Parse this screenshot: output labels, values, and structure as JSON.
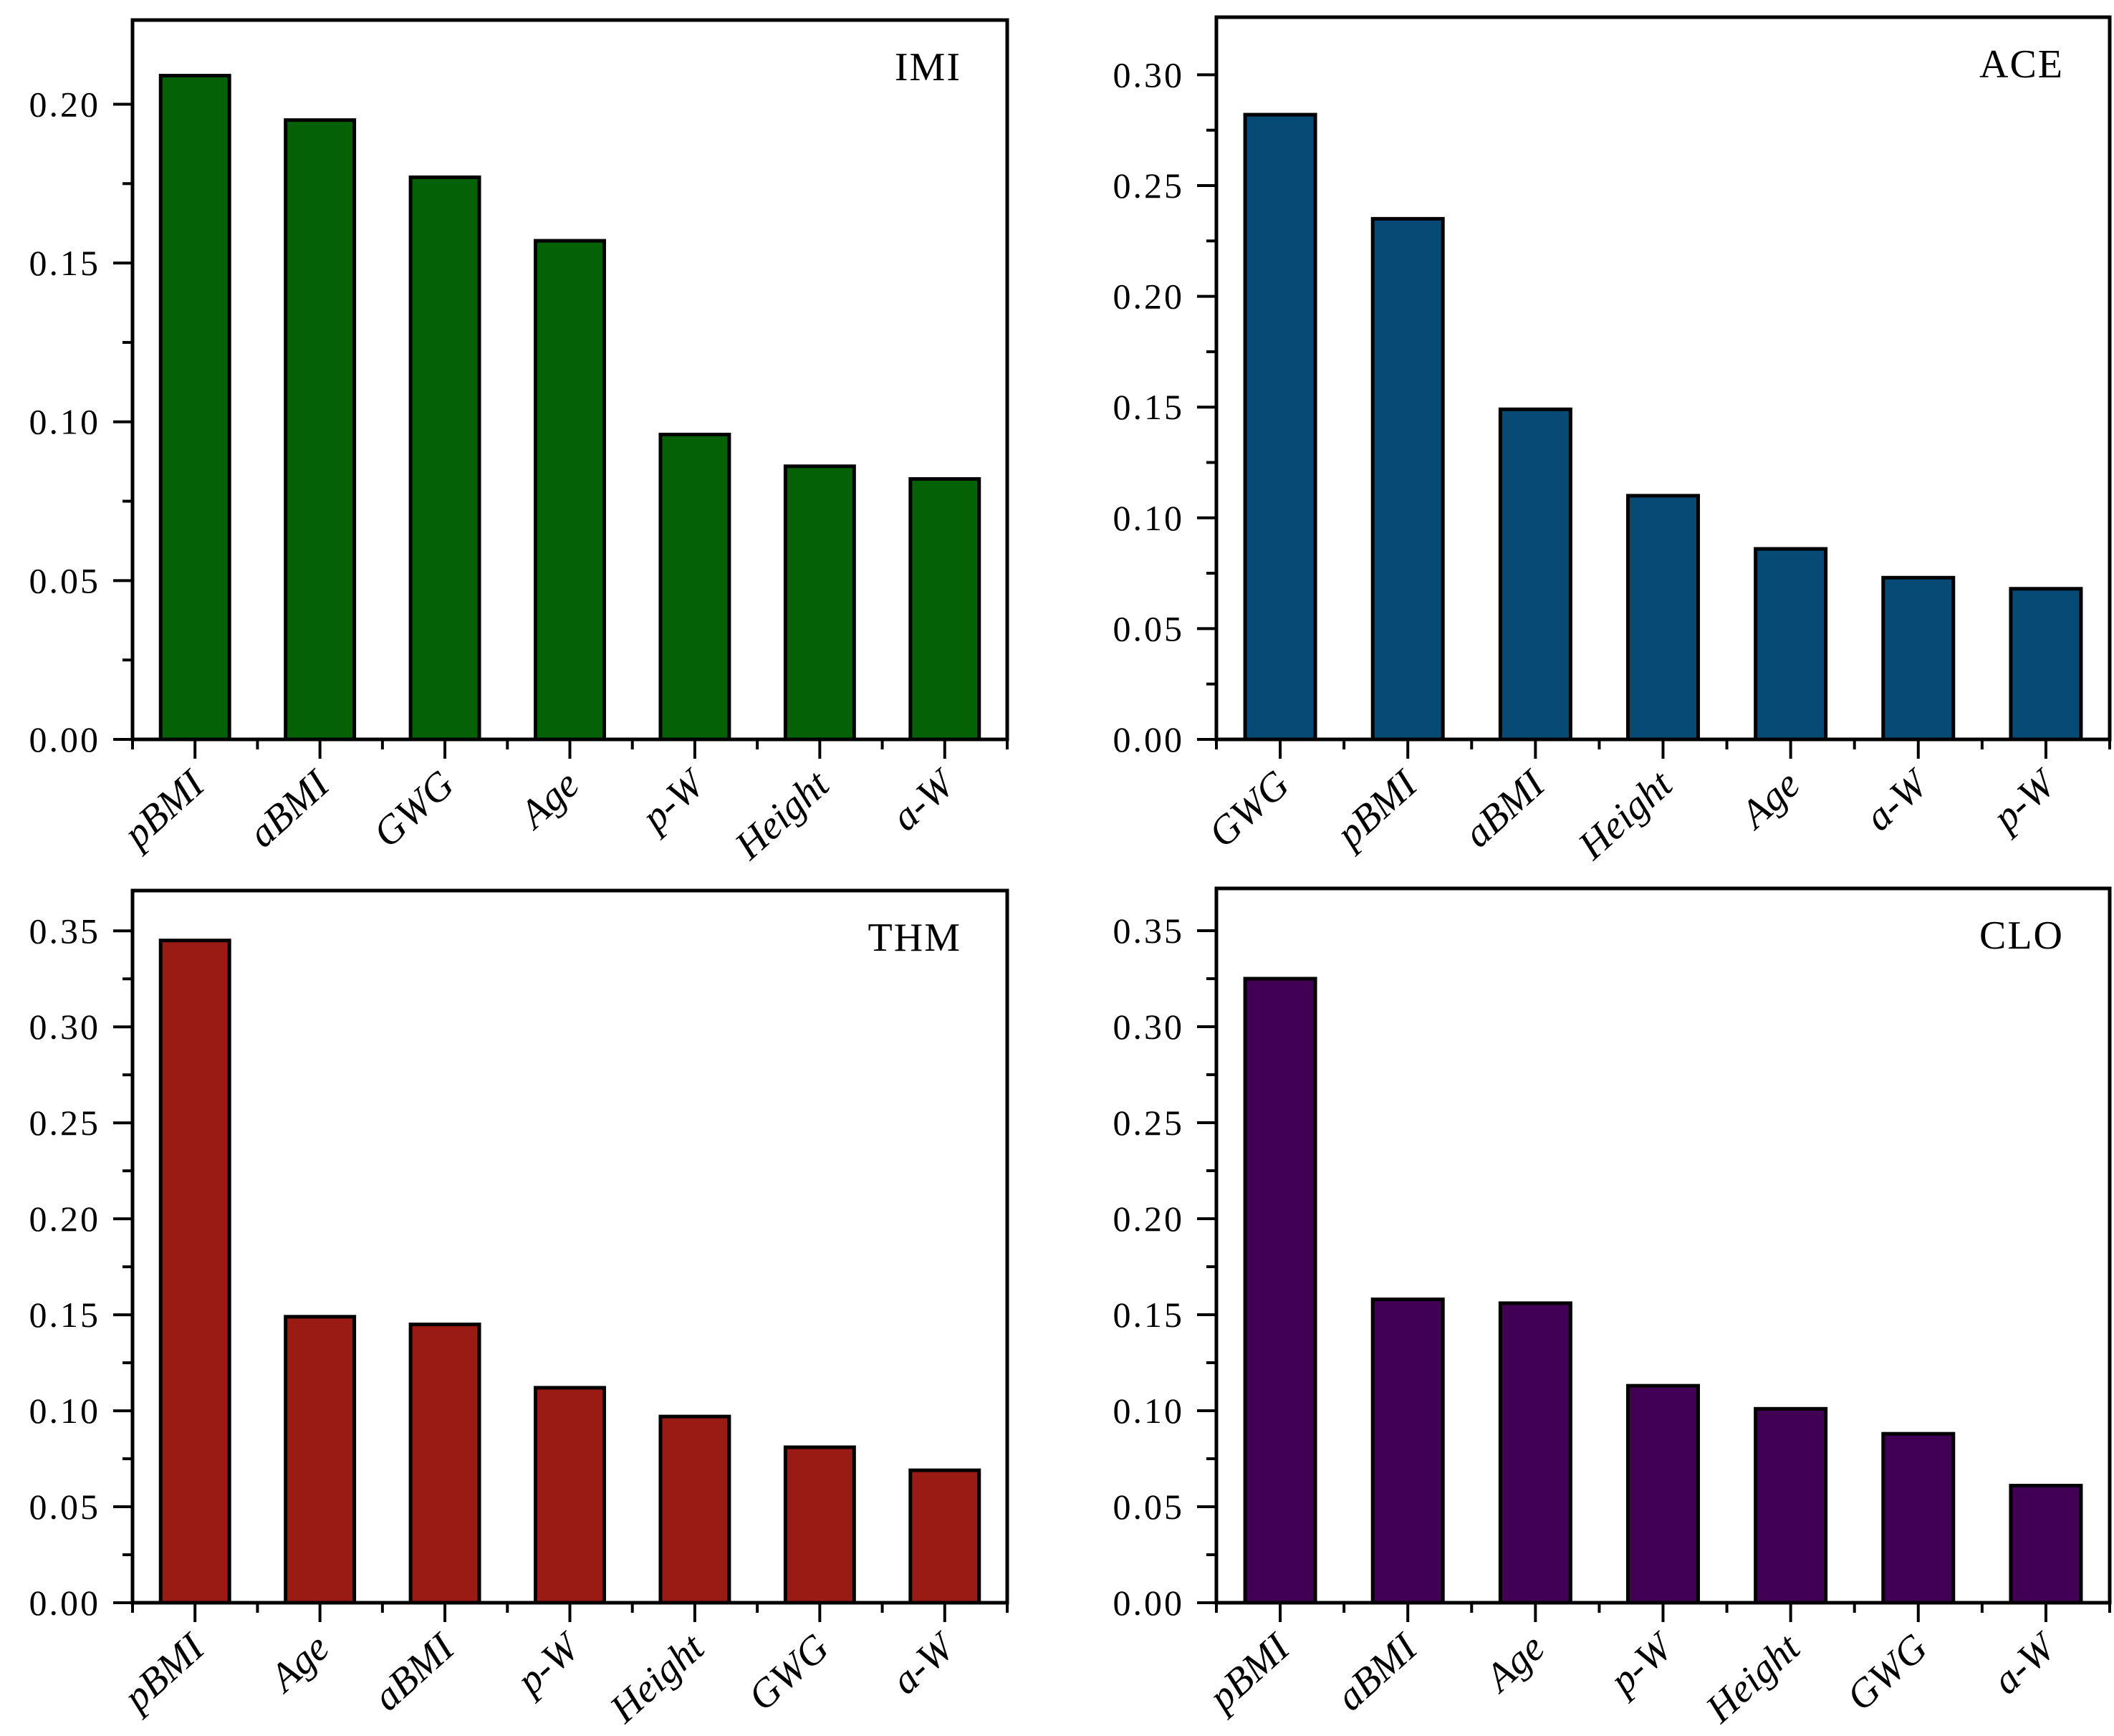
{
  "figure": {
    "background": "#ffffff",
    "axis_color": "#000000"
  },
  "chart_data": [
    {
      "type": "bar",
      "title": "IMI",
      "bar_color": "#056105",
      "categories": [
        "pBMI",
        "aBMI",
        "GWG",
        "Age",
        "p-W",
        "Height",
        "a-W"
      ],
      "values": [
        0.209,
        0.195,
        0.177,
        0.157,
        0.096,
        0.086,
        0.082
      ],
      "xlabel": "",
      "ylabel": "",
      "ylim": [
        0,
        0.2265
      ],
      "ytick_step": 0.05,
      "ytick_labels": [
        "0.00",
        "0.05",
        "0.10",
        "0.15",
        "0.20"
      ],
      "grid": "off",
      "legend": "none"
    },
    {
      "type": "bar",
      "title": "ACE",
      "bar_color": "#084a76",
      "categories": [
        "GWG",
        "pBMI",
        "aBMI",
        "Height",
        "Age",
        "a-W",
        "p-W"
      ],
      "values": [
        0.282,
        0.235,
        0.149,
        0.11,
        0.086,
        0.073,
        0.068
      ],
      "xlabel": "",
      "ylabel": "",
      "ylim": [
        0,
        0.326
      ],
      "ytick_step": 0.05,
      "ytick_labels": [
        "0.00",
        "0.05",
        "0.10",
        "0.15",
        "0.20",
        "0.25",
        "0.30"
      ],
      "grid": "off",
      "legend": "none"
    },
    {
      "type": "bar",
      "title": "THM",
      "bar_color": "#9a1a14",
      "categories": [
        "pBMI",
        "Age",
        "aBMI",
        "p-W",
        "Height",
        "GWG",
        "a-W"
      ],
      "values": [
        0.345,
        0.149,
        0.145,
        0.112,
        0.097,
        0.081,
        0.069
      ],
      "xlabel": "",
      "ylabel": "",
      "ylim": [
        0,
        0.371
      ],
      "ytick_step": 0.05,
      "ytick_labels": [
        "0.00",
        "0.05",
        "0.10",
        "0.15",
        "0.20",
        "0.25",
        "0.30",
        "0.35"
      ],
      "grid": "off",
      "legend": "none"
    },
    {
      "type": "bar",
      "title": "CLO",
      "bar_color": "#420055",
      "categories": [
        "pBMI",
        "aBMI",
        "Age",
        "p-W",
        "Height",
        "GWG",
        "a-W"
      ],
      "values": [
        0.325,
        0.158,
        0.156,
        0.113,
        0.101,
        0.088,
        0.061
      ],
      "xlabel": "",
      "ylabel": "",
      "ylim": [
        0,
        0.372
      ],
      "ytick_step": 0.05,
      "ytick_labels": [
        "0.00",
        "0.05",
        "0.10",
        "0.15",
        "0.20",
        "0.25",
        "0.30",
        "0.35"
      ],
      "grid": "off",
      "legend": "none"
    }
  ]
}
